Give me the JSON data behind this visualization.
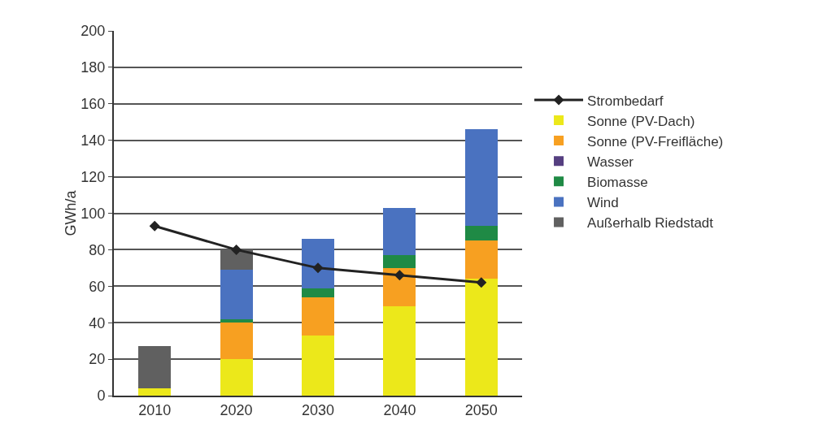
{
  "chart_data": {
    "type": "bar",
    "stacked": true,
    "ylabel": "GWh/a",
    "categories": [
      "2010",
      "2020",
      "2030",
      "2040",
      "2050"
    ],
    "ylim": [
      0,
      200
    ],
    "yticks": [
      0,
      20,
      40,
      60,
      80,
      100,
      120,
      140,
      160,
      180,
      200
    ],
    "grid": "y",
    "legend": "right",
    "series": [
      {
        "name": "Sonne (PV-Dach)",
        "color": "#ece81a",
        "values": [
          4,
          20,
          33,
          49,
          64
        ]
      },
      {
        "name": "Sonne (PV-Freifläche)",
        "color": "#f7a021",
        "values": [
          0,
          20,
          21,
          21,
          21
        ]
      },
      {
        "name": "Wasser",
        "color": "#553f80",
        "values": [
          0,
          0,
          0,
          0,
          0
        ]
      },
      {
        "name": "Biomasse",
        "color": "#1f8a45",
        "values": [
          0,
          2,
          5,
          7,
          8
        ]
      },
      {
        "name": "Wind",
        "color": "#4a72c0",
        "values": [
          0,
          27,
          27,
          26,
          53
        ]
      },
      {
        "name": "Außerhalb Riedstadt",
        "color": "#606060",
        "values": [
          23,
          11,
          0,
          0,
          0
        ]
      },
      {
        "name": "Strombedarf",
        "type": "line",
        "color": "#222222",
        "marker": "diamond",
        "values": [
          93,
          80,
          70,
          66,
          62
        ]
      }
    ]
  }
}
